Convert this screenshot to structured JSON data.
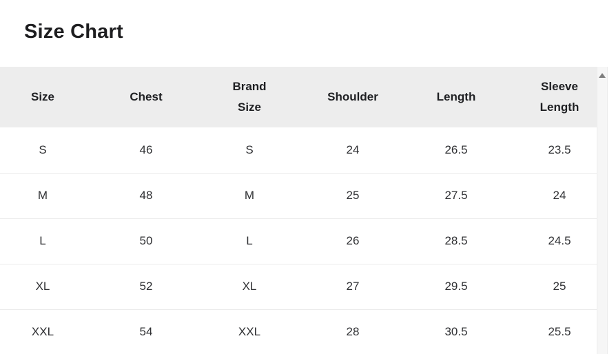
{
  "title": "Size Chart",
  "table": {
    "columns": [
      "Size",
      "Chest",
      "Brand Size",
      "Shoulder",
      "Length",
      "Sleeve Length"
    ],
    "rows": [
      [
        "S",
        "46",
        "S",
        "24",
        "26.5",
        "23.5"
      ],
      [
        "M",
        "48",
        "M",
        "25",
        "27.5",
        "24"
      ],
      [
        "L",
        "50",
        "L",
        "26",
        "28.5",
        "24.5"
      ],
      [
        "XL",
        "52",
        "XL",
        "27",
        "29.5",
        "25"
      ],
      [
        "XXL",
        "54",
        "XXL",
        "28",
        "30.5",
        "25.5"
      ]
    ]
  },
  "scrollbar": {
    "up_arrow_icon": "arrow-up"
  },
  "colors": {
    "header_background": "#ededed",
    "row_border": "#ebebeb",
    "title_text": "#1d1d1f",
    "body_text": "#2f3033",
    "scrollbar_track": "#f6f6f6",
    "scrollbar_arrow": "#7e7e7e"
  }
}
